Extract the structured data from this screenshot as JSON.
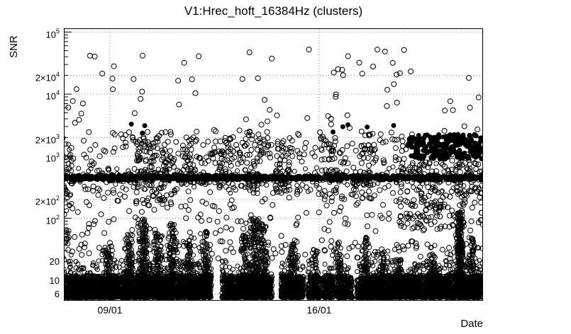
{
  "chart_data": {
    "type": "scatter",
    "title": "V1:Hrec_hoft_16384Hz (clusters)",
    "xlabel": "Date",
    "ylabel": "SNR",
    "y_scale": "log",
    "ylim": [
      5.5,
      115000
    ],
    "log_min": 0.67,
    "log_max": 5.06,
    "grid": true,
    "colors": {
      "marker": "#000000",
      "grid": "#8a8a8a",
      "frame": "#000000",
      "background": "#ffffff",
      "text": "#000000"
    },
    "y_ticks": [
      {
        "coeff": "",
        "exp": "5",
        "log": 5.0
      },
      {
        "coeff": "2",
        "exp": "4",
        "log": 4.30103
      },
      {
        "coeff": "",
        "exp": "4",
        "log": 4.0
      },
      {
        "coeff": "2",
        "exp": "3",
        "log": 3.30103
      },
      {
        "coeff": "",
        "exp": "3",
        "log": 3.0
      },
      {
        "coeff": "2",
        "exp": "2",
        "log": 2.30103
      },
      {
        "coeff": "",
        "exp": "2",
        "log": 2.0
      },
      {
        "text": "20",
        "log": 1.30103
      },
      {
        "text": "10",
        "log": 1.0
      },
      {
        "text": "6",
        "log": 0.77815
      }
    ],
    "x_ticks": [
      {
        "label": "09/01",
        "f": 0.11
      },
      {
        "label": "16/01",
        "f": 0.609
      }
    ],
    "x_day_step_f": 0.0713,
    "x_gaps": [
      [
        0.352,
        0.377
      ],
      [
        0.497,
        0.518
      ],
      [
        0.572,
        0.582
      ],
      [
        0.612,
        0.619
      ],
      [
        0.643,
        0.653
      ],
      [
        0.688,
        0.699
      ]
    ],
    "clusters": [
      {
        "name": "grass-base",
        "n": 6000,
        "x": [
          0.0,
          1.0
        ],
        "use_gaps": true,
        "log": [
          0.72,
          1.08
        ],
        "bias": 1.5,
        "r": 3
      },
      {
        "name": "grass-fringe",
        "n": 700,
        "x": [
          0.0,
          1.0
        ],
        "use_gaps": true,
        "log": [
          1.0,
          1.34
        ],
        "bias": 2.0,
        "r": 3
      },
      {
        "name": "left-edge-column",
        "cx": 0.008,
        "sx": 0.006,
        "n": 50,
        "log": [
          1.3,
          3.3
        ],
        "bias": 1.3,
        "r": 3
      },
      {
        "name": "spike",
        "cx": 0.105,
        "sx": 0.006,
        "n": 150,
        "log": [
          0.75,
          1.55
        ],
        "bias": 2.2,
        "r": 3
      },
      {
        "name": "spike",
        "cx": 0.155,
        "sx": 0.006,
        "n": 180,
        "log": [
          0.75,
          1.75
        ],
        "bias": 2.2,
        "r": 3
      },
      {
        "name": "spike",
        "cx": 0.19,
        "sx": 0.007,
        "n": 240,
        "log": [
          0.75,
          2.0
        ],
        "bias": 2.2,
        "r": 3
      },
      {
        "name": "spike",
        "cx": 0.225,
        "sx": 0.006,
        "n": 170,
        "log": [
          0.75,
          1.8
        ],
        "bias": 2.2,
        "r": 3
      },
      {
        "name": "spike",
        "cx": 0.26,
        "sx": 0.007,
        "n": 190,
        "log": [
          0.75,
          1.9
        ],
        "bias": 2.2,
        "r": 3
      },
      {
        "name": "spike",
        "cx": 0.3,
        "sx": 0.006,
        "n": 140,
        "log": [
          0.75,
          1.7
        ],
        "bias": 2.2,
        "r": 3
      },
      {
        "name": "spike",
        "cx": 0.335,
        "sx": 0.006,
        "n": 140,
        "log": [
          0.75,
          1.8
        ],
        "bias": 2.2,
        "r": 3
      },
      {
        "name": "spike",
        "cx": 0.43,
        "sx": 0.006,
        "n": 140,
        "log": [
          0.75,
          1.75
        ],
        "bias": 2.2,
        "r": 3
      },
      {
        "name": "spike",
        "cx": 0.455,
        "sx": 0.008,
        "n": 280,
        "log": [
          0.75,
          2.0
        ],
        "bias": 2.2,
        "r": 3
      },
      {
        "name": "spike",
        "cx": 0.475,
        "sx": 0.006,
        "n": 190,
        "log": [
          0.75,
          1.9
        ],
        "bias": 2.2,
        "r": 3
      },
      {
        "name": "spike",
        "cx": 0.545,
        "sx": 0.005,
        "n": 110,
        "log": [
          0.75,
          1.6
        ],
        "bias": 2.2,
        "r": 3
      },
      {
        "name": "spike",
        "cx": 0.6,
        "sx": 0.005,
        "n": 90,
        "log": [
          0.75,
          1.5
        ],
        "bias": 2.2,
        "r": 3
      },
      {
        "name": "spike",
        "cx": 0.655,
        "sx": 0.005,
        "n": 110,
        "log": [
          0.75,
          1.6
        ],
        "bias": 2.2,
        "r": 3
      },
      {
        "name": "spike",
        "cx": 0.72,
        "sx": 0.006,
        "n": 140,
        "log": [
          0.75,
          1.7
        ],
        "bias": 2.2,
        "r": 3
      },
      {
        "name": "spike",
        "cx": 0.76,
        "sx": 0.005,
        "n": 90,
        "log": [
          0.75,
          1.5
        ],
        "bias": 2.2,
        "r": 3
      },
      {
        "name": "spike",
        "cx": 0.8,
        "sx": 0.005,
        "n": 90,
        "log": [
          0.75,
          1.5
        ],
        "bias": 2.2,
        "r": 3
      },
      {
        "name": "spike",
        "cx": 0.88,
        "sx": 0.005,
        "n": 110,
        "log": [
          0.75,
          1.6
        ],
        "bias": 2.2,
        "r": 3
      },
      {
        "name": "spike-tall",
        "cx": 0.945,
        "sx": 0.004,
        "n": 330,
        "log": [
          0.75,
          2.1
        ],
        "bias": 1.8,
        "r": 3
      },
      {
        "name": "spike",
        "cx": 0.975,
        "sx": 0.005,
        "n": 110,
        "log": [
          0.75,
          1.7
        ],
        "bias": 2.2,
        "r": 3
      },
      {
        "name": "band-snr-450",
        "n": 1400,
        "x": [
          0.0,
          1.0
        ],
        "mu": 2.653,
        "sigma": 0.022,
        "filled": true,
        "r": 3
      },
      {
        "name": "band-halo",
        "n": 230,
        "x": [
          0.0,
          1.0
        ],
        "mu": 2.653,
        "sigma": 0.1,
        "r": 3
      },
      {
        "name": "mid-scatter",
        "n": 430,
        "x": [
          0.01,
          1.0
        ],
        "log": [
          1.35,
          3.25
        ],
        "bias": 1.15,
        "r": 3.5
      },
      {
        "name": "mid-cluster",
        "cx": 0.19,
        "sx": 0.018,
        "n": 55,
        "log": [
          2.2,
          3.3
        ],
        "bias": 1.0,
        "r": 3.5
      },
      {
        "name": "mid-cluster",
        "cx": 0.235,
        "sx": 0.014,
        "n": 45,
        "log": [
          2.2,
          3.3
        ],
        "bias": 1.0,
        "r": 3.5
      },
      {
        "name": "mid-cluster",
        "cx": 0.3,
        "sx": 0.016,
        "n": 45,
        "log": [
          2.5,
          3.3
        ],
        "bias": 1.0,
        "r": 3.5
      },
      {
        "name": "mid-cluster",
        "cx": 0.38,
        "sx": 0.013,
        "n": 40,
        "log": [
          2.4,
          3.3
        ],
        "bias": 1.0,
        "r": 3.5
      },
      {
        "name": "mid-cluster",
        "cx": 0.455,
        "sx": 0.016,
        "n": 55,
        "log": [
          2.4,
          3.35
        ],
        "bias": 1.0,
        "r": 3.5
      },
      {
        "name": "mid-cluster",
        "cx": 0.52,
        "sx": 0.013,
        "n": 45,
        "log": [
          2.4,
          3.3
        ],
        "bias": 1.0,
        "r": 3.5
      },
      {
        "name": "mid-cluster",
        "cx": 0.63,
        "sx": 0.015,
        "n": 40,
        "log": [
          2.3,
          3.3
        ],
        "bias": 1.0,
        "r": 3.5
      },
      {
        "name": "mid-cluster",
        "cx": 0.72,
        "sx": 0.015,
        "n": 45,
        "log": [
          2.3,
          3.35
        ],
        "bias": 1.0,
        "r": 3.5
      },
      {
        "name": "upper-left-scatter",
        "n": 130,
        "x": [
          0.01,
          0.82
        ],
        "log": [
          2.9,
          3.4
        ],
        "bias": 1.0,
        "r": 3.5
      },
      {
        "name": "right-cluster-filled",
        "n": 260,
        "x": [
          0.82,
          1.0
        ],
        "log": [
          2.95,
          3.35
        ],
        "bias": 1.0,
        "filled": true,
        "r": 3.5
      },
      {
        "name": "right-mid-scatter",
        "n": 170,
        "x": [
          0.8,
          1.0
        ],
        "log": [
          1.8,
          2.9
        ],
        "bias": 1.0,
        "r": 3.5
      },
      {
        "name": "high-outliers",
        "n": 40,
        "x": [
          0.01,
          0.99
        ],
        "log": [
          3.3,
          3.95
        ],
        "bias": 1.0,
        "r": 3.5
      },
      {
        "name": "higher-outliers",
        "n": 26,
        "x": [
          0.01,
          0.99
        ],
        "log": [
          3.95,
          4.45
        ],
        "bias": 1.0,
        "r": 3.5
      },
      {
        "name": "highest-outliers",
        "n": 14,
        "x": [
          0.02,
          0.98
        ],
        "log": [
          4.5,
          4.72
        ],
        "bias": 1.0,
        "r": 3.5
      },
      {
        "name": "filled-high",
        "n": 8,
        "x": [
          0.05,
          0.9
        ],
        "log": [
          3.35,
          3.55
        ],
        "bias": 1.0,
        "filled": true,
        "r": 3.5
      }
    ]
  }
}
